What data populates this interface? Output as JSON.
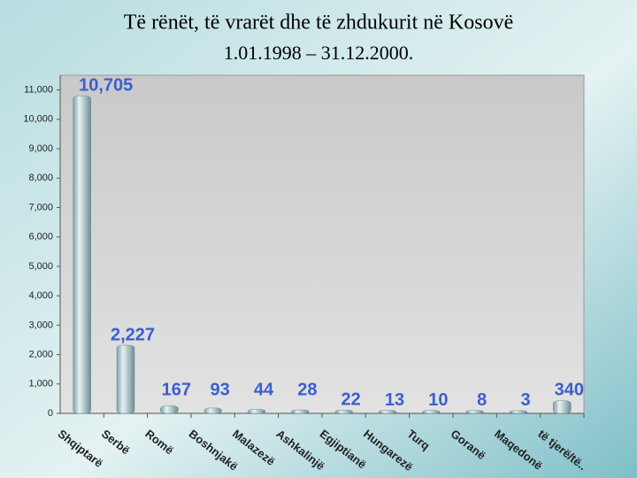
{
  "chart_data": {
    "type": "bar",
    "title": "Të rënët, të vrarët dhe të zhdukurit në Kosovë",
    "subtitle": "1.01.1998 – 31.12.2000.",
    "categories": [
      "Shqiptarë",
      "Serbë",
      "Romë",
      "Boshnjakë",
      "Malazezë",
      "Ashkalinjë",
      "Egjiptianë",
      "Hungarezë",
      "Turq",
      "Goranë",
      "Maqedonë",
      "të tjerë/të.."
    ],
    "values": [
      10705,
      2227,
      167,
      93,
      44,
      28,
      22,
      13,
      10,
      8,
      3,
      340
    ],
    "value_labels": [
      "10,705",
      "2,227",
      "167",
      "93",
      "44",
      "28",
      "22",
      "13",
      "10",
      "8",
      "3",
      "340"
    ],
    "color": "#a9c6cf",
    "ylim": [
      0,
      11500
    ],
    "yticks": [
      0,
      {
        "value": 1000,
        "label": "1,000"
      },
      {
        "value": 2000,
        "label": "2,000"
      },
      {
        "value": 3000,
        "label": "3,000"
      },
      {
        "value": 4000,
        "label": "4,000"
      },
      {
        "value": 5000,
        "label": "5,000"
      },
      {
        "value": 6000,
        "label": "6,000"
      },
      {
        "value": 7000,
        "label": "7,000"
      },
      {
        "value": 8000,
        "label": "8,000"
      },
      {
        "value": 9000,
        "label": "9,000"
      },
      {
        "value": 10000,
        "label": "10,000"
      },
      {
        "value": 11000,
        "label": "11,000"
      }
    ],
    "grid": false
  }
}
